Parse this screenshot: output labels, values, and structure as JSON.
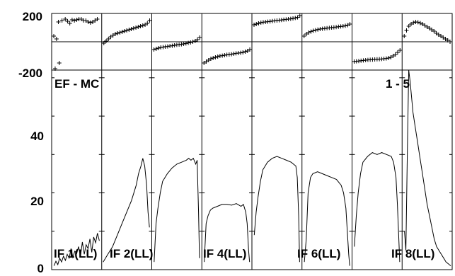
{
  "chart_data": {
    "type": "line",
    "panel_label": "EF - MC",
    "corner_label": "1 - 5",
    "if_labels": [
      "IF 1(LL)",
      "IF 2(LL)",
      "IF 4(LL)",
      "IF 6(LL)",
      "IF 8(LL)"
    ],
    "phase_axis": {
      "ylim": [
        -200,
        200
      ],
      "tick_labels": [
        "200",
        "-200"
      ]
    },
    "amp_axis": {
      "ylim": [
        0,
        52
      ],
      "tick_labels": [
        "0",
        "20",
        "40"
      ]
    },
    "phase_panels": [
      {
        "x": [
          0,
          0.03,
          0.06,
          0.1,
          0.12,
          0.18,
          0.25,
          0.3,
          0.35,
          0.4,
          0.45,
          0.5,
          0.55,
          0.6,
          0.65,
          0.7,
          0.75,
          0.8,
          0.85,
          0.9,
          0.95
        ],
        "y": [
          40,
          -190,
          20,
          140,
          -150,
          150,
          160,
          145,
          130,
          155,
          150,
          155,
          160,
          160,
          150,
          150,
          140,
          135,
          140,
          150,
          160
        ]
      },
      {
        "x": [
          0,
          0.05,
          0.1,
          0.15,
          0.2,
          0.25,
          0.3,
          0.35,
          0.4,
          0.45,
          0.5,
          0.55,
          0.6,
          0.65,
          0.7,
          0.75,
          0.8,
          0.85,
          0.9,
          0.95,
          1.0
        ],
        "y": [
          -10,
          5,
          20,
          35,
          45,
          55,
          60,
          65,
          70,
          75,
          80,
          85,
          90,
          95,
          100,
          105,
          110,
          115,
          120,
          130,
          150
        ]
      },
      {
        "x": [
          0,
          0.05,
          0.1,
          0.15,
          0.2,
          0.25,
          0.3,
          0.35,
          0.4,
          0.45,
          0.5,
          0.55,
          0.6,
          0.65,
          0.7,
          0.75,
          0.8,
          0.85,
          0.9,
          0.95,
          1.0
        ],
        "y": [
          -55,
          -50,
          -45,
          -40,
          -38,
          -35,
          -33,
          -30,
          -28,
          -25,
          -22,
          -20,
          -18,
          -15,
          -12,
          -8,
          -5,
          0,
          5,
          15,
          30
        ]
      },
      {
        "x": [
          0,
          0.05,
          0.1,
          0.15,
          0.2,
          0.25,
          0.3,
          0.35,
          0.4,
          0.45,
          0.5,
          0.55,
          0.6,
          0.65,
          0.7,
          0.75,
          0.8,
          0.85,
          0.9,
          0.95,
          1.0
        ],
        "y": [
          -150,
          -140,
          -130,
          -120,
          -115,
          -110,
          -105,
          -100,
          -98,
          -95,
          -92,
          -90,
          -88,
          -85,
          -82,
          -80,
          -78,
          -75,
          -70,
          -65,
          -55
        ]
      },
      {
        "x": [
          0,
          0.05,
          0.1,
          0.15,
          0.2,
          0.25,
          0.3,
          0.35,
          0.4,
          0.45,
          0.5,
          0.55,
          0.6,
          0.65,
          0.7,
          0.75,
          0.8,
          0.85,
          0.9,
          0.95,
          1.0
        ],
        "y": [
          120,
          125,
          130,
          135,
          138,
          140,
          142,
          144,
          146,
          148,
          150,
          152,
          154,
          156,
          158,
          160,
          162,
          165,
          168,
          172,
          185
        ]
      },
      {
        "x": [
          0,
          0.05,
          0.1,
          0.15,
          0.2,
          0.25,
          0.3,
          0.35,
          0.4,
          0.45,
          0.5,
          0.55,
          0.6,
          0.65,
          0.7,
          0.75,
          0.8,
          0.85,
          0.9,
          0.95,
          1.0
        ],
        "y": [
          40,
          55,
          65,
          72,
          78,
          82,
          86,
          90,
          92,
          94,
          96,
          98,
          100,
          102,
          104,
          106,
          108,
          110,
          113,
          117,
          125
        ]
      },
      {
        "x": [
          0,
          0.05,
          0.1,
          0.15,
          0.2,
          0.25,
          0.3,
          0.35,
          0.4,
          0.45,
          0.5,
          0.55,
          0.6,
          0.65,
          0.7,
          0.75,
          0.8,
          0.85,
          0.9,
          0.95,
          1.0
        ],
        "y": [
          -140,
          -138,
          -136,
          -134,
          -132,
          -130,
          -128,
          -127,
          -126,
          -125,
          -124,
          -123,
          -122,
          -120,
          -118,
          -115,
          -110,
          -100,
          -90,
          -75,
          -60
        ]
      },
      {
        "x": [
          0,
          0.05,
          0.1,
          0.15,
          0.2,
          0.25,
          0.3,
          0.35,
          0.4,
          0.45,
          0.5,
          0.55,
          0.6,
          0.65,
          0.7,
          0.75,
          0.8,
          0.85,
          0.9,
          0.95,
          1.0
        ],
        "y": [
          40,
          80,
          110,
          125,
          135,
          140,
          138,
          132,
          125,
          115,
          105,
          95,
          85,
          75,
          60,
          50,
          40,
          30,
          20,
          10,
          0
        ]
      }
    ],
    "amp_panels": [
      {
        "x": [
          0.02,
          0.06,
          0.1,
          0.14,
          0.18,
          0.22,
          0.26,
          0.3,
          0.34,
          0.38,
          0.42,
          0.46,
          0.5,
          0.54,
          0.58,
          0.62,
          0.66,
          0.7,
          0.74,
          0.78,
          0.82,
          0.86,
          0.9,
          0.94,
          0.98
        ],
        "y": [
          1.0,
          2.2,
          1.3,
          3.0,
          2.0,
          3.5,
          2.4,
          4.0,
          3.0,
          5.5,
          3.2,
          4.8,
          4.2,
          6.0,
          3.5,
          7.2,
          4.0,
          6.5,
          5.5,
          8.0,
          4.5,
          8.5,
          7.0,
          9.5,
          7.5
        ]
      },
      {
        "x": [
          0.0,
          0.1,
          0.2,
          0.3,
          0.4,
          0.5,
          0.6,
          0.7,
          0.75,
          0.8,
          0.84,
          0.88,
          0.92,
          0.95,
          0.98
        ],
        "y": [
          2,
          4,
          6,
          9,
          12,
          15,
          18,
          22,
          25,
          27,
          29,
          27,
          22,
          15,
          11
        ]
      },
      {
        "x": [
          0.02,
          0.06,
          0.1,
          0.15,
          0.2,
          0.3,
          0.4,
          0.5,
          0.6,
          0.7,
          0.75,
          0.8,
          0.85,
          0.9,
          0.93,
          0.96,
          0.98
        ],
        "y": [
          2,
          12,
          16,
          20,
          23,
          25,
          26.5,
          27.5,
          28,
          28.5,
          29,
          28.5,
          29,
          27.5,
          28.5,
          15,
          3
        ]
      },
      {
        "x": [
          0.02,
          0.06,
          0.1,
          0.15,
          0.2,
          0.3,
          0.4,
          0.5,
          0.6,
          0.7,
          0.8,
          0.85,
          0.9,
          0.93,
          0.96,
          0.98
        ],
        "y": [
          2,
          12,
          14,
          15.5,
          16,
          16.5,
          17,
          17,
          16.8,
          17.2,
          16.5,
          17,
          15,
          12,
          5,
          2
        ]
      },
      {
        "x": [
          0.02,
          0.06,
          0.1,
          0.15,
          0.2,
          0.3,
          0.4,
          0.5,
          0.6,
          0.7,
          0.8,
          0.85,
          0.9,
          0.93,
          0.96,
          0.98
        ],
        "y": [
          9,
          15,
          19,
          23,
          26,
          28,
          29,
          29.5,
          29,
          28.5,
          28,
          27.5,
          27,
          24,
          14,
          2
        ]
      },
      {
        "x": [
          0.02,
          0.06,
          0.1,
          0.15,
          0.2,
          0.3,
          0.4,
          0.5,
          0.6,
          0.7,
          0.8,
          0.85,
          0.9,
          0.93,
          0.96,
          0.98
        ],
        "y": [
          2,
          8,
          20,
          24,
          25,
          25.5,
          25,
          24.5,
          24,
          23.5,
          22,
          20,
          16,
          10,
          4,
          1
        ]
      },
      {
        "x": [
          0.02,
          0.06,
          0.1,
          0.15,
          0.2,
          0.3,
          0.4,
          0.5,
          0.6,
          0.7,
          0.8,
          0.85,
          0.9,
          0.93,
          0.96,
          0.98
        ],
        "y": [
          6,
          14,
          20,
          25,
          28,
          29.5,
          30.5,
          30,
          30.5,
          30,
          29.5,
          28,
          24,
          17,
          8,
          2
        ]
      },
      {
        "x": [
          0.02,
          0.05,
          0.08,
          0.11,
          0.14,
          0.17,
          0.2,
          0.25,
          0.3,
          0.35,
          0.4,
          0.45,
          0.5,
          0.55,
          0.6,
          0.65,
          0.7,
          0.75,
          0.8,
          0.85,
          0.9,
          0.95,
          1.0
        ],
        "y": [
          10,
          5,
          30,
          52,
          49,
          45,
          41,
          37,
          33,
          29,
          25,
          21,
          17,
          14,
          11,
          8,
          6,
          5,
          4,
          3,
          2,
          1.5,
          1
        ]
      }
    ]
  }
}
